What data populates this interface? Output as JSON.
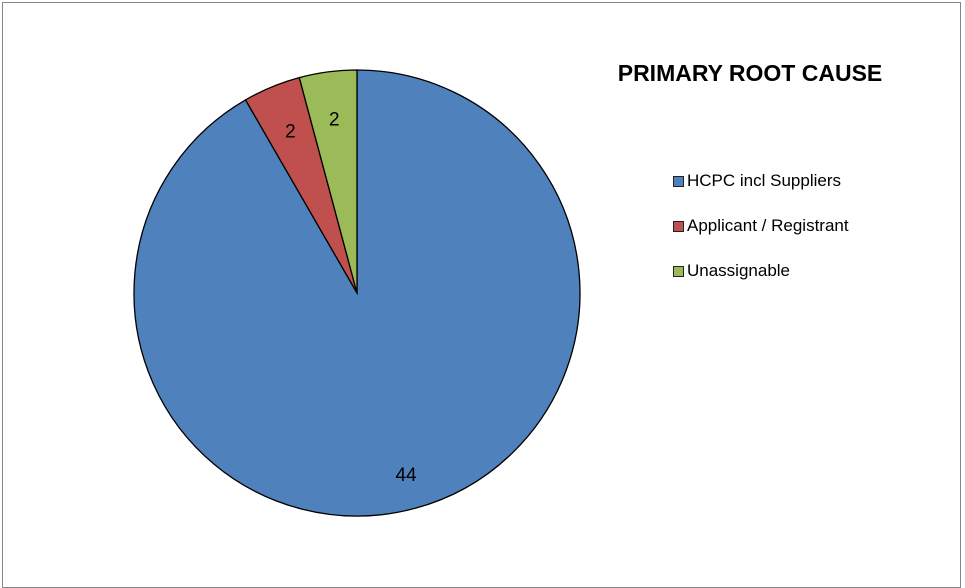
{
  "chart_data": {
    "type": "pie",
    "title": "PRIMARY ROOT CAUSE",
    "categories": [
      "HCPC incl Suppliers",
      "Applicant / Registrant",
      "Unassignable"
    ],
    "values": [
      44,
      2,
      2
    ],
    "data_labels": [
      "44",
      "2",
      "2"
    ],
    "colors": [
      "#4F81BD",
      "#C0504D",
      "#9BBB59"
    ],
    "start": "12 o'clock",
    "direction": "clockwise",
    "legend_position": "right"
  }
}
